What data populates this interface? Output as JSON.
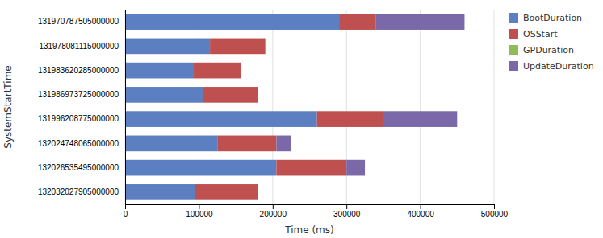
{
  "chart_data": {
    "type": "bar",
    "orientation": "horizontal",
    "stacked": true,
    "categories": [
      "131970787505000000",
      "131978081115000000",
      "131983620285000000",
      "131986973725000000",
      "131996208775000000",
      "132024748065000000",
      "132026535495000000",
      "132032027905000000"
    ],
    "series": [
      {
        "name": "BootDuration",
        "color": "#5b7fc0",
        "values": [
          290000,
          115000,
          92000,
          105000,
          260000,
          125000,
          205000,
          95000
        ]
      },
      {
        "name": "OSStart",
        "color": "#bf5050",
        "values": [
          50000,
          75000,
          65000,
          75000,
          90000,
          80000,
          95000,
          85000
        ]
      },
      {
        "name": "GPDuration",
        "color": "#8fbb5a",
        "values": [
          0,
          0,
          0,
          0,
          0,
          0,
          0,
          0
        ]
      },
      {
        "name": "UpdateDuration",
        "color": "#7b68a8",
        "values": [
          120000,
          0,
          0,
          0,
          100000,
          20000,
          25000,
          0
        ]
      }
    ],
    "xlabel": "Time (ms)",
    "ylabel": "SystemStartTime",
    "xlim": [
      0,
      500000
    ],
    "xticks": [
      0,
      100000,
      200000,
      300000,
      400000,
      500000
    ],
    "grid": true,
    "legend": "right"
  }
}
